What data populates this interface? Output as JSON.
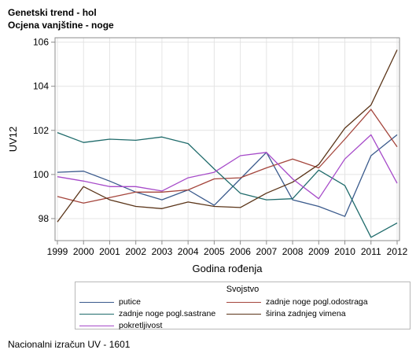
{
  "header": {
    "title_line1": "Genetski trend - hol",
    "title_line2": "Ocjena vanjštine - noge"
  },
  "footnote": "Nacionalni izračun UV - 1601",
  "legend_title": "Svojstvo",
  "chart_data": {
    "type": "line",
    "title": "Genetski trend - hol",
    "subtitle": "Ocjena vanjštine - noge",
    "xlabel": "Godina rođenja",
    "ylabel": "UV12",
    "x": [
      "1999",
      "2000",
      "2001",
      "2002",
      "2003",
      "2004",
      "2005",
      "2006",
      "2007",
      "2008",
      "2009",
      "2010",
      "2011",
      "2012"
    ],
    "ylim": [
      97.0,
      106.2
    ],
    "yticks": [
      98,
      100,
      102,
      104,
      106
    ],
    "grid": true,
    "legend_position": "bottom",
    "series": [
      {
        "name": "putice",
        "color": "#3a5a8c",
        "values": [
          100.1,
          100.15,
          99.7,
          99.2,
          98.85,
          99.3,
          98.6,
          99.8,
          101.0,
          98.85,
          98.55,
          98.1,
          100.85,
          101.8
        ]
      },
      {
        "name": "zadnje noge pogl.odostraga",
        "color": "#a4453c",
        "values": [
          99.0,
          98.7,
          98.95,
          99.2,
          99.2,
          99.3,
          99.8,
          99.85,
          100.3,
          100.7,
          100.3,
          101.6,
          102.95,
          101.25
        ]
      },
      {
        "name": "zadnje noge pogl.sastrane",
        "color": "#1f6b6b",
        "values": [
          101.9,
          101.45,
          101.6,
          101.55,
          101.7,
          101.4,
          100.25,
          99.15,
          98.85,
          98.9,
          100.2,
          99.5,
          97.15,
          97.8
        ]
      },
      {
        "name": "širina zadnjeg vimena",
        "color": "#5a3418",
        "values": [
          97.85,
          99.45,
          98.85,
          98.55,
          98.45,
          98.75,
          98.55,
          98.5,
          99.15,
          99.65,
          100.45,
          102.1,
          103.15,
          105.65
        ]
      },
      {
        "name": "pokretljivost",
        "color": "#a64ac9",
        "values": [
          99.9,
          99.7,
          99.45,
          99.45,
          99.25,
          99.85,
          100.1,
          100.85,
          101.0,
          99.8,
          98.9,
          100.7,
          101.8,
          99.6
        ]
      }
    ]
  }
}
